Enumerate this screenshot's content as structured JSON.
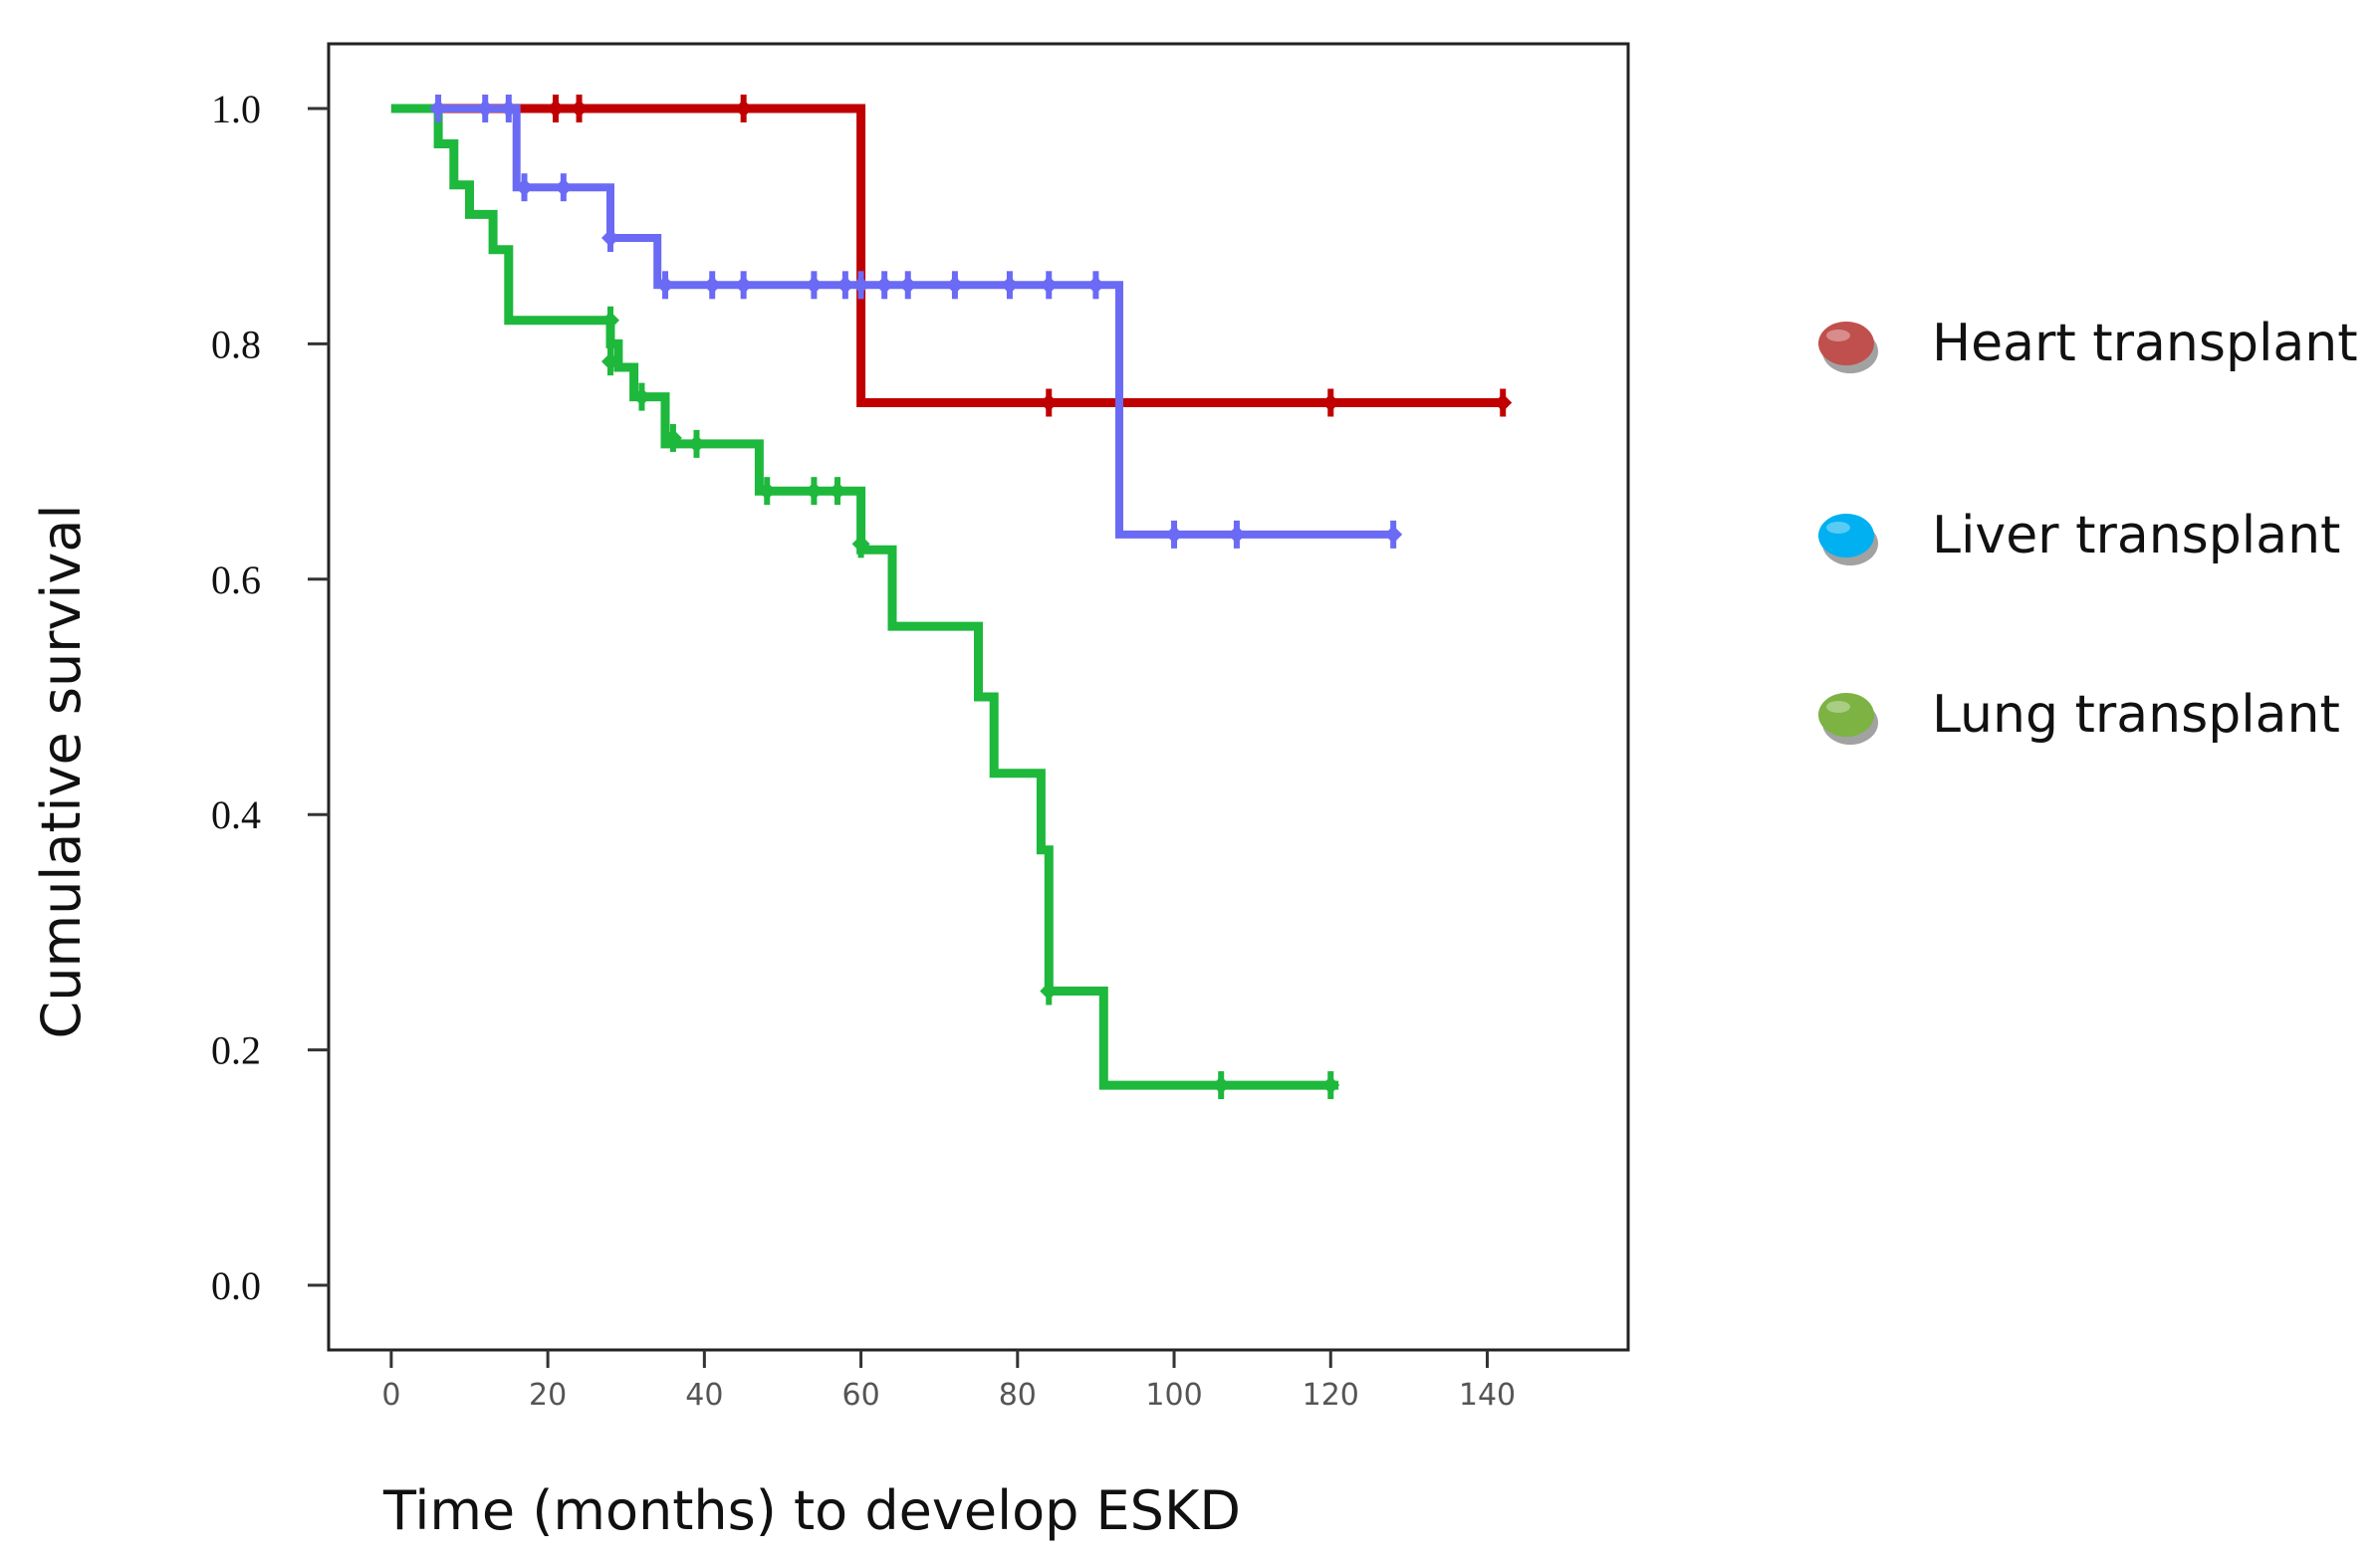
{
  "chart_data": {
    "type": "line",
    "subtype": "kaplan-meier step survival",
    "xlabel": "Time (months) to develop ESKD",
    "ylabel": "Cumulative survival",
    "xlim": [
      -8,
      158
    ],
    "ylim": [
      -0.055,
      1.055
    ],
    "x_ticks": [
      0,
      20,
      40,
      60,
      80,
      100,
      120,
      140
    ],
    "x_tick_labels": [
      "0",
      "20",
      "40",
      "60",
      "80",
      "100",
      "120",
      "140"
    ],
    "y_ticks": [
      0.0,
      0.2,
      0.4,
      0.6,
      0.8,
      1.0
    ],
    "y_tick_labels": [
      "0.0",
      "0.2",
      "0.4",
      "0.6",
      "0.8",
      "1.0"
    ],
    "grid": false,
    "legend_position": "right",
    "series": [
      {
        "name": "Heart transplant",
        "color": "#c00000",
        "marker_color": "#c0504d",
        "steps": [
          [
            0,
            1.0
          ],
          [
            60,
            0.75
          ],
          [
            142,
            0.75
          ]
        ],
        "censored": [
          [
            21,
            1.0
          ],
          [
            24,
            1.0
          ],
          [
            45,
            1.0
          ],
          [
            84,
            0.75
          ],
          [
            120,
            0.75
          ],
          [
            142,
            0.75
          ]
        ]
      },
      {
        "name": "Liver transplant",
        "color": "#6a6af5",
        "marker_color": "#00b0f0",
        "steps": [
          [
            6,
            1.0
          ],
          [
            16,
            0.933
          ],
          [
            28,
            0.89
          ],
          [
            34,
            0.85
          ],
          [
            93,
            0.638
          ],
          [
            128,
            0.638
          ]
        ],
        "censored": [
          [
            6,
            1.0
          ],
          [
            12,
            1.0
          ],
          [
            15,
            1.0
          ],
          [
            17,
            0.933
          ],
          [
            22,
            0.933
          ],
          [
            28,
            0.89
          ],
          [
            35,
            0.85
          ],
          [
            41,
            0.85
          ],
          [
            45,
            0.85
          ],
          [
            54,
            0.85
          ],
          [
            58,
            0.85
          ],
          [
            60,
            0.85
          ],
          [
            63,
            0.85
          ],
          [
            66,
            0.85
          ],
          [
            72,
            0.85
          ],
          [
            79,
            0.85
          ],
          [
            84,
            0.85
          ],
          [
            90,
            0.85
          ],
          [
            100,
            0.638
          ],
          [
            108,
            0.638
          ],
          [
            128,
            0.638
          ]
        ]
      },
      {
        "name": "Lung transplant",
        "color": "#1db83c",
        "marker_color": "#7cb342",
        "steps": [
          [
            0,
            1.0
          ],
          [
            6,
            0.97
          ],
          [
            8,
            0.935
          ],
          [
            10,
            0.91
          ],
          [
            13,
            0.88
          ],
          [
            15,
            0.82
          ],
          [
            28,
            0.8
          ],
          [
            29,
            0.78
          ],
          [
            31,
            0.755
          ],
          [
            35,
            0.715
          ],
          [
            47,
            0.675
          ],
          [
            60,
            0.625
          ],
          [
            64,
            0.56
          ],
          [
            75,
            0.5
          ],
          [
            77,
            0.435
          ],
          [
            83,
            0.37
          ],
          [
            84,
            0.25
          ],
          [
            91,
            0.17
          ],
          [
            121,
            0.17
          ]
        ],
        "censored": [
          [
            28,
            0.82
          ],
          [
            28,
            0.785
          ],
          [
            32,
            0.755
          ],
          [
            36,
            0.72
          ],
          [
            39,
            0.715
          ],
          [
            48,
            0.675
          ],
          [
            54,
            0.675
          ],
          [
            57,
            0.675
          ],
          [
            60,
            0.63
          ],
          [
            84,
            0.25
          ],
          [
            106,
            0.17
          ],
          [
            120,
            0.17
          ]
        ]
      }
    ]
  }
}
